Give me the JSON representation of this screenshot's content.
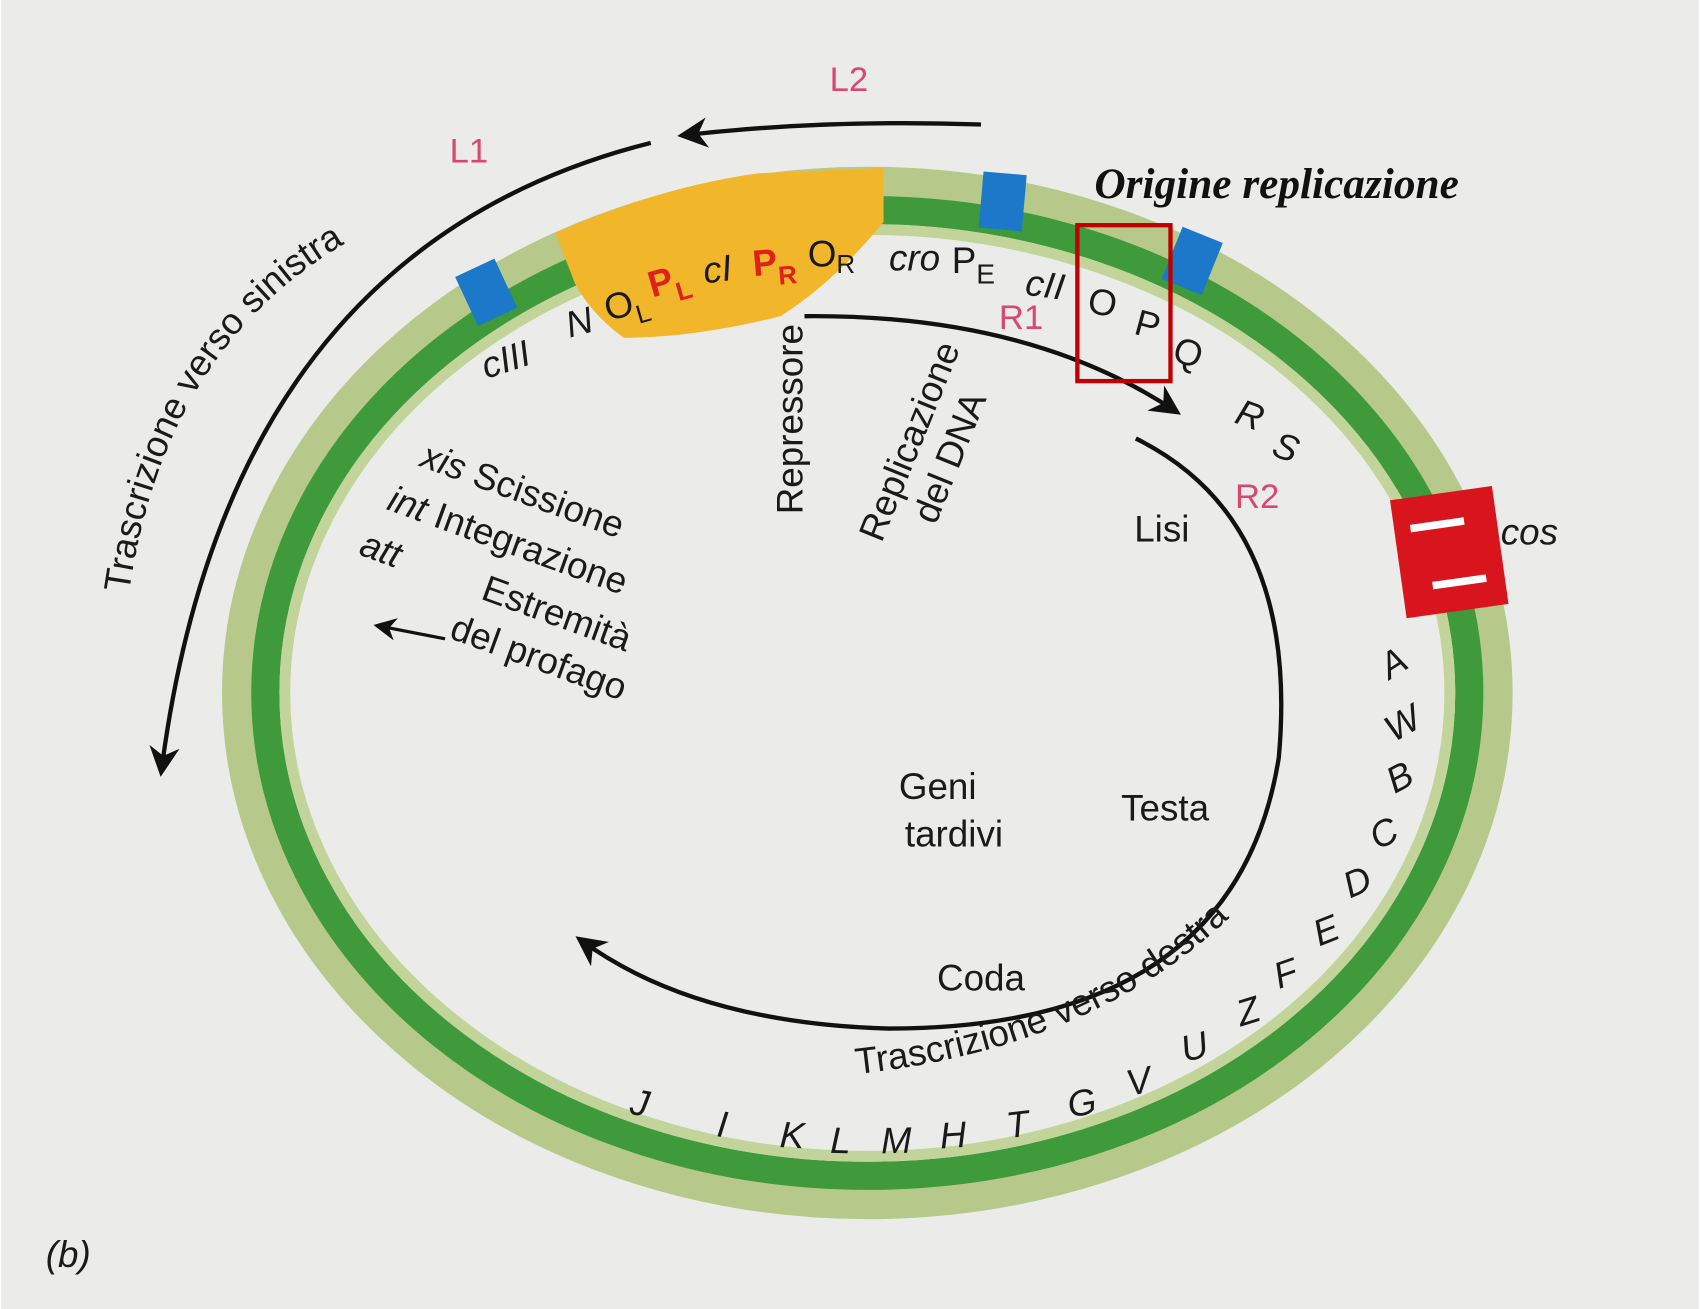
{
  "annotation": "Origine replicazione",
  "transcripts": {
    "L1": "L1",
    "L2": "L2",
    "R1": "R1",
    "R2": "R2"
  },
  "transcription_labels": {
    "left": "Trascrizione verso sinistra",
    "right": "Trascrizione verso destra"
  },
  "control_region": {
    "OL": {
      "main": "O",
      "sub": "L"
    },
    "PL": {
      "main": "P",
      "sub": "L"
    },
    "cI": "cI",
    "PR": {
      "main": "P",
      "sub": "R"
    },
    "OR": {
      "main": "O",
      "sub": "R"
    },
    "cro": "cro",
    "PE": {
      "main": "P",
      "sub": "E"
    },
    "cII": "cII",
    "N": "N",
    "cIII": "cIII"
  },
  "early_genes": {
    "O": "O",
    "P": "P",
    "Q": "Q",
    "R": "R",
    "S": "S"
  },
  "functions": {
    "repressor": "Repressore",
    "replication": [
      "Replicazione",
      "del DNA"
    ],
    "lysis": "Lisi",
    "excision": {
      "gene": "xis",
      "label": "Scissione"
    },
    "integration": {
      "gene": "int",
      "label": "Integrazione"
    },
    "attachment": {
      "gene": "att",
      "label": [
        "Estremità",
        "del profago"
      ]
    },
    "late_genes": [
      "Geni",
      "tardivi"
    ],
    "head": "Testa",
    "tail": "Coda"
  },
  "cos": "cos",
  "late_gene_letters": [
    "J",
    "I",
    "K",
    "L",
    "M",
    "H",
    "T",
    "G",
    "V",
    "U",
    "Z",
    "F",
    "E",
    "D",
    "C",
    "B",
    "W",
    "A"
  ],
  "panel_label": "(b)"
}
